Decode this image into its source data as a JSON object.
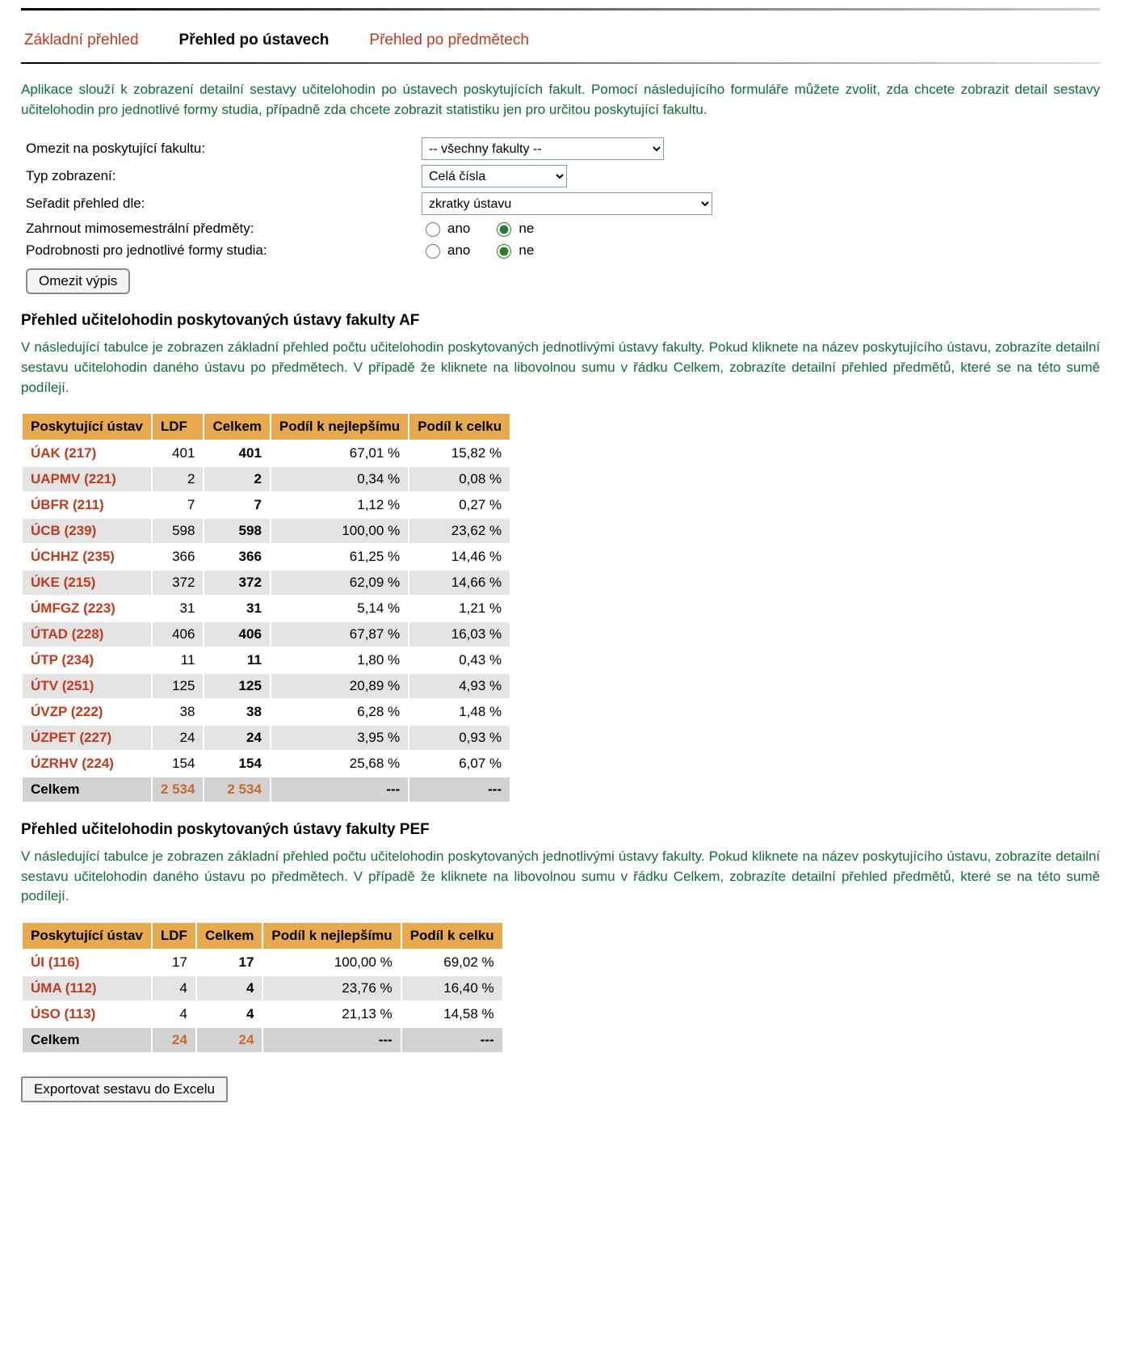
{
  "tabs": {
    "basic": "Základní přehled",
    "by_dept": "Přehled po ústavech",
    "by_subj": "Přehled po předmětech"
  },
  "intro": "Aplikace slouží k zobrazení detailní sestavy učitelohodin po ústavech poskytujících fakult. Pomocí následujícího formuláře můžete zvolit, zda chcete zobrazit detail sestavy učitelohodin pro jednotlivé formy studia, případně zda chcete zobrazit statistiku jen pro určitou poskytující fakultu.",
  "form": {
    "faculty_label": "Omezit na poskytující fakultu:",
    "faculty_value": "-- všechny fakulty --",
    "display_label": "Typ zobrazení:",
    "display_value": "Celá čísla",
    "sort_label": "Seřadit přehled dle:",
    "sort_value": "zkratky ústavu",
    "include_label": "Zahrnout mimosemestrální předměty:",
    "detail_label": "Podrobnosti pro jednotlivé formy studia:",
    "yes": "ano",
    "no": "ne",
    "submit": "Omezit výpis"
  },
  "section1": {
    "title": "Přehled učitelohodin poskytovaných ústavy fakulty AF",
    "intro": "V následující tabulce je zobrazen základní přehled počtu učitelohodin poskytovaných jednotlivými ústavy fakulty. Pokud kliknete na název poskytujícího ústavu, zobrazíte detailní sestavu učitelohodin daného ústavu po předmětech. V případě že kliknete na libovolnou sumu v řádku Celkem, zobrazíte detailní přehled předmětů, které se na této sumě podílejí.",
    "headers": [
      "Poskytující ústav",
      "LDF",
      "Celkem",
      "Podíl k nejlepšímu",
      "Podíl k celku"
    ],
    "rows": [
      {
        "name": "ÚAK (217)",
        "ldf": "401",
        "total": "401",
        "best": "67,01 %",
        "whole": "15,82 %"
      },
      {
        "name": "UAPMV (221)",
        "ldf": "2",
        "total": "2",
        "best": "0,34 %",
        "whole": "0,08 %"
      },
      {
        "name": "ÚBFR (211)",
        "ldf": "7",
        "total": "7",
        "best": "1,12 %",
        "whole": "0,27 %"
      },
      {
        "name": "ÚCB (239)",
        "ldf": "598",
        "total": "598",
        "best": "100,00 %",
        "whole": "23,62 %"
      },
      {
        "name": "ÚCHHZ (235)",
        "ldf": "366",
        "total": "366",
        "best": "61,25 %",
        "whole": "14,46 %"
      },
      {
        "name": "ÚKE (215)",
        "ldf": "372",
        "total": "372",
        "best": "62,09 %",
        "whole": "14,66 %"
      },
      {
        "name": "ÚMFGZ (223)",
        "ldf": "31",
        "total": "31",
        "best": "5,14 %",
        "whole": "1,21 %"
      },
      {
        "name": "ÚTAD (228)",
        "ldf": "406",
        "total": "406",
        "best": "67,87 %",
        "whole": "16,03 %"
      },
      {
        "name": "ÚTP (234)",
        "ldf": "11",
        "total": "11",
        "best": "1,80 %",
        "whole": "0,43 %"
      },
      {
        "name": "ÚTV (251)",
        "ldf": "125",
        "total": "125",
        "best": "20,89 %",
        "whole": "4,93 %"
      },
      {
        "name": "ÚVZP (222)",
        "ldf": "38",
        "total": "38",
        "best": "6,28 %",
        "whole": "1,48 %"
      },
      {
        "name": "ÚZPET (227)",
        "ldf": "24",
        "total": "24",
        "best": "3,95 %",
        "whole": "0,93 %"
      },
      {
        "name": "ÚZRHV (224)",
        "ldf": "154",
        "total": "154",
        "best": "25,68 %",
        "whole": "6,07 %"
      }
    ],
    "total_row": {
      "label": "Celkem",
      "ldf": "2 534",
      "total": "2 534",
      "best": "---",
      "whole": "---"
    }
  },
  "section2": {
    "title": "Přehled učitelohodin poskytovaných ústavy fakulty PEF",
    "intro": "V následující tabulce je zobrazen základní přehled počtu učitelohodin poskytovaných jednotlivými ústavy fakulty. Pokud kliknete na název poskytujícího ústavu, zobrazíte detailní sestavu učitelohodin daného ústavu po předmětech. V případě že kliknete na libovolnou sumu v řádku Celkem, zobrazíte detailní přehled předmětů, které se na této sumě podílejí.",
    "headers": [
      "Poskytující ústav",
      "LDF",
      "Celkem",
      "Podíl k nejlepšímu",
      "Podíl k celku"
    ],
    "rows": [
      {
        "name": "ÚI (116)",
        "ldf": "17",
        "total": "17",
        "best": "100,00 %",
        "whole": "69,02 %"
      },
      {
        "name": "ÚMA (112)",
        "ldf": "4",
        "total": "4",
        "best": "23,76 %",
        "whole": "16,40 %"
      },
      {
        "name": "ÚSO (113)",
        "ldf": "4",
        "total": "4",
        "best": "21,13 %",
        "whole": "14,58 %"
      }
    ],
    "total_row": {
      "label": "Celkem",
      "ldf": "24",
      "total": "24",
      "best": "---",
      "whole": "---"
    }
  },
  "export_button": "Exportovat sestavu do Excelu",
  "style": {
    "select_widths": {
      "faculty": 300,
      "display": 180,
      "sort": 360
    }
  }
}
